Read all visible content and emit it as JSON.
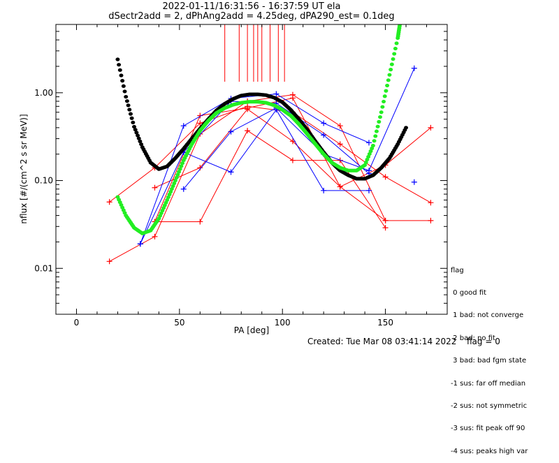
{
  "chart_data": {
    "type": "scatter",
    "title": "2022-01-11/16:31:56 - 16:37:59 UT ela",
    "subtitle": "dSectr2add = 2, dPhAng2add = 4.25deg, dPA290_est=   0.1deg",
    "xlabel": "PA [deg]",
    "ylabel": "nflux [#/(cm^2 s sr MeV)]",
    "xlim": [
      -10,
      180
    ],
    "ylim": [
      0.003,
      6
    ],
    "yscale": "log",
    "x_ticks": [
      0,
      50,
      100,
      150
    ],
    "x_tick_labels": [
      "0",
      "50",
      "100",
      "150"
    ],
    "y_ticks": [
      0.01,
      0.1,
      1.0
    ],
    "y_tick_labels": [
      "0.01",
      "0.10",
      "1.00"
    ],
    "grid": false,
    "markers_vertical_x": [
      72,
      79,
      83,
      86,
      88,
      90,
      94,
      98,
      101
    ],
    "series": [
      {
        "color": "#ff0000",
        "style": "line-plus",
        "segments": [
          [
            [
              16,
              0.057
            ],
            [
              38,
              0.14
            ],
            [
              60,
              0.45
            ],
            [
              83,
              0.7
            ],
            [
              105,
              0.6
            ],
            [
              128,
              0.26
            ],
            [
              150,
              0.11
            ],
            [
              172,
              0.056
            ]
          ],
          [
            [
              16,
              0.012
            ],
            [
              38,
              0.023
            ],
            [
              60,
              0.34
            ],
            [
              83,
              0.8
            ],
            [
              105,
              0.95
            ],
            [
              128,
              0.42
            ],
            [
              150,
              0.035
            ],
            [
              172,
              0.035
            ]
          ],
          [
            [
              38,
              0.034
            ],
            [
              60,
              0.034
            ],
            [
              83,
              0.37
            ],
            [
              105,
              0.17
            ],
            [
              128,
              0.17
            ],
            [
              150,
              0.029
            ]
          ],
          [
            [
              38,
              0.083
            ],
            [
              60,
              0.14
            ],
            [
              83,
              0.65
            ],
            [
              105,
              0.28
            ],
            [
              128,
              0.085
            ],
            [
              150,
              0.15
            ],
            [
              172,
              0.4
            ]
          ],
          [
            [
              38,
              0.034
            ],
            [
              60,
              0.55
            ],
            [
              83,
              0.67
            ],
            [
              105,
              0.87
            ],
            [
              128,
              0.085
            ],
            [
              150,
              0.035
            ]
          ]
        ]
      },
      {
        "color": "#0000ff",
        "style": "line-plus",
        "segments": [
          [
            [
              31,
              0.019
            ],
            [
              52,
              0.42
            ],
            [
              75,
              0.86
            ],
            [
              97,
              0.97
            ],
            [
              120,
              0.45
            ],
            [
              142,
              0.27
            ]
          ],
          [
            [
              52,
              0.08
            ],
            [
              75,
              0.36
            ],
            [
              97,
              0.67
            ],
            [
              120,
              0.2
            ],
            [
              142,
              0.13
            ],
            [
              164,
              1.9
            ]
          ],
          [
            [
              52,
              0.21
            ],
            [
              75,
              0.125
            ],
            [
              97,
              0.64
            ],
            [
              120,
              0.077
            ],
            [
              142,
              0.077
            ]
          ],
          [
            [
              31,
              0.019
            ],
            [
              52,
              0.21
            ],
            [
              75,
              0.8
            ],
            [
              97,
              0.76
            ],
            [
              120,
              0.33
            ],
            [
              142,
              0.12
            ]
          ],
          [
            [
              164,
              0.096
            ]
          ]
        ]
      },
      {
        "color": "#000000",
        "style": "thick-dotted-fit",
        "x": [
          20,
          24,
          28,
          32,
          36,
          40,
          44,
          48,
          52,
          56,
          60,
          64,
          68,
          72,
          76,
          80,
          84,
          88,
          92,
          96,
          100,
          104,
          108,
          112,
          116,
          120,
          124,
          128,
          132,
          136,
          140,
          144,
          148,
          152,
          156,
          160
        ],
        "values": [
          2.4,
          0.9,
          0.41,
          0.24,
          0.16,
          0.135,
          0.145,
          0.18,
          0.23,
          0.3,
          0.39,
          0.5,
          0.63,
          0.75,
          0.85,
          0.93,
          0.96,
          0.96,
          0.94,
          0.88,
          0.78,
          0.64,
          0.5,
          0.38,
          0.28,
          0.21,
          0.16,
          0.13,
          0.115,
          0.105,
          0.105,
          0.115,
          0.14,
          0.18,
          0.26,
          0.4
        ]
      },
      {
        "color": "#22ee22",
        "style": "thick-dotted-fit",
        "x": [
          20,
          24,
          28,
          32,
          36,
          40,
          44,
          48,
          52,
          56,
          60,
          64,
          68,
          72,
          76,
          80,
          84,
          88,
          92,
          96,
          100,
          104,
          108,
          112,
          116,
          120,
          124,
          128,
          132,
          136,
          140,
          144,
          148,
          152,
          156,
          157
        ],
        "values": [
          0.065,
          0.04,
          0.029,
          0.025,
          0.027,
          0.037,
          0.06,
          0.1,
          0.17,
          0.26,
          0.37,
          0.48,
          0.59,
          0.67,
          0.73,
          0.77,
          0.79,
          0.79,
          0.77,
          0.72,
          0.64,
          0.55,
          0.44,
          0.34,
          0.26,
          0.2,
          0.16,
          0.14,
          0.13,
          0.13,
          0.15,
          0.25,
          0.6,
          1.6,
          4.2,
          6.0
        ]
      }
    ]
  },
  "legend": {
    "title": "flag",
    "items": [
      " 0 good fit",
      " 1 bad: not converge",
      " 2 bad: no fit",
      " 3 bad: bad fgm state",
      "-1 sus: far off median",
      "-2 sus: not symmetric",
      "-3 sus: fit peak off 90",
      "-4 sus: peaks high var"
    ]
  },
  "footer": {
    "created": "Created: Tue Mar 08 03:41:14 2022",
    "flag": "flag = 0"
  }
}
